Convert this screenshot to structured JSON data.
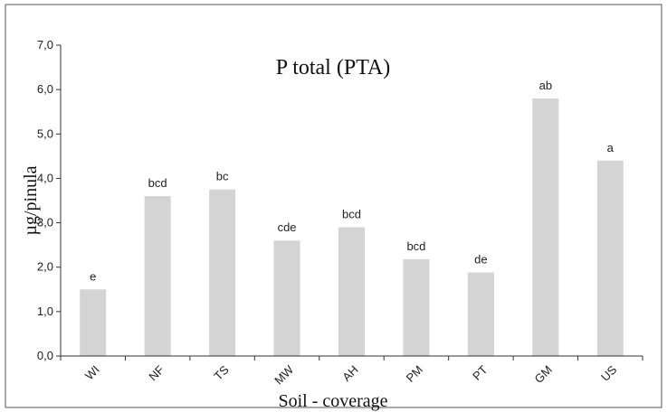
{
  "chart_data": {
    "type": "bar",
    "title": "P total (PTA)",
    "xlabel": "Soil - coverage",
    "ylabel": "µg/pinula",
    "categories": [
      "WI",
      "NF",
      "TS",
      "MW",
      "AH",
      "PM",
      "PT",
      "GM",
      "US"
    ],
    "values": [
      1.5,
      3.6,
      3.75,
      2.6,
      2.9,
      2.18,
      1.88,
      5.8,
      4.4
    ],
    "labels": [
      "e",
      "bcd",
      "bc",
      "cde",
      "bcd",
      "bcd",
      "de",
      "ab",
      "a"
    ],
    "ylim": [
      0,
      7
    ],
    "yticks": [
      "0,0",
      "1,0",
      "2,0",
      "3,0",
      "4,0",
      "5,0",
      "6,0",
      "7,0"
    ],
    "grid": false,
    "colors": {
      "bar": "#d4d4d4",
      "axis": "#333333",
      "frame": "#555555"
    }
  }
}
